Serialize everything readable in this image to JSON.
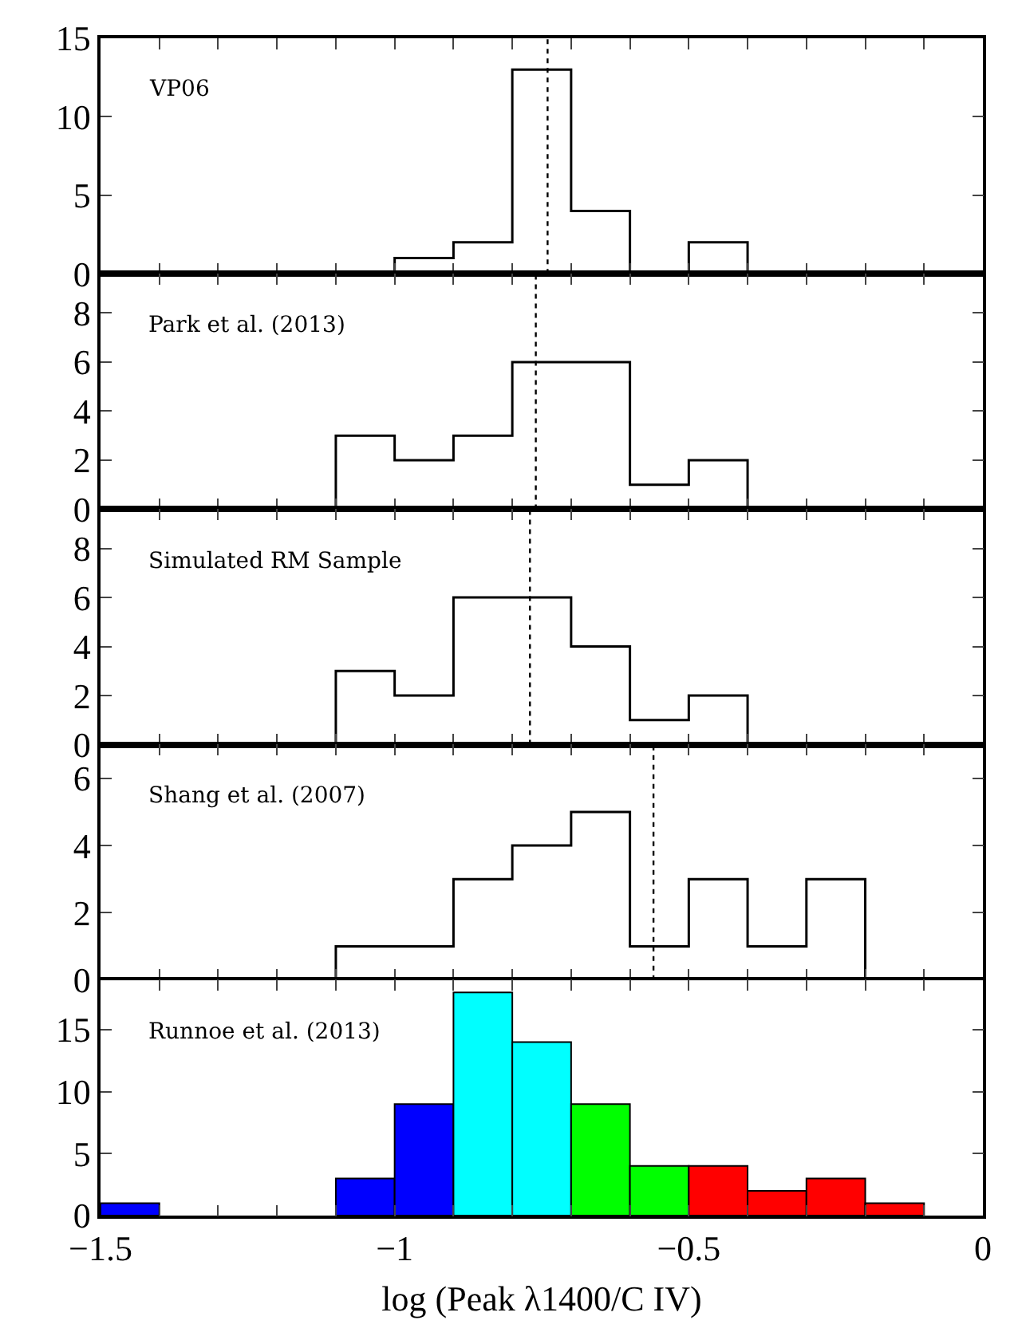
{
  "chart_data": [
    {
      "type": "histogram",
      "bins": [
        -1.0,
        -0.9,
        -0.8,
        -0.7,
        -0.6,
        -0.5,
        -0.4
      ],
      "values": [
        1,
        2,
        13,
        4,
        0,
        2
      ],
      "color": "#000000",
      "xlim": [
        -1.5,
        0
      ],
      "xticks": [
        {
          "value": -1.5,
          "label": null
        },
        {
          "value": -1.4,
          "label": null
        },
        {
          "value": -1.3,
          "label": null
        },
        {
          "value": -1.2,
          "label": null
        },
        {
          "value": -1.1,
          "label": null
        },
        {
          "value": -1.0,
          "label": null
        },
        {
          "value": -0.9,
          "label": null
        },
        {
          "value": -0.8,
          "label": null
        },
        {
          "value": -0.7,
          "label": null
        },
        {
          "value": -0.6,
          "label": null
        },
        {
          "value": -0.5,
          "label": null
        },
        {
          "value": -0.4,
          "label": null
        },
        {
          "value": -0.3,
          "label": null
        },
        {
          "value": -0.2,
          "label": null
        },
        {
          "value": -0.1,
          "label": null
        },
        {
          "value": 0,
          "label": null
        }
      ],
      "ylim": [
        0,
        15
      ],
      "yticks": [
        0,
        5,
        10,
        15
      ],
      "tick_labels": "y",
      "annotations": [
        "VP06"
      ],
      "ref_lines": [
        {
          "axis": "x",
          "value": -0.74,
          "color": "#000000",
          "line_style": "dotted"
        }
      ]
    },
    {
      "type": "histogram",
      "bins": [
        -1.1,
        -1.0,
        -0.9,
        -0.8,
        -0.7,
        -0.6,
        -0.5,
        -0.4
      ],
      "values": [
        3,
        2,
        3,
        6,
        6,
        1,
        2
      ],
      "color": "#000000",
      "xlim": [
        -1.5,
        0
      ],
      "xticks": [
        {
          "value": -1.5,
          "label": null
        },
        {
          "value": -1.4,
          "label": null
        },
        {
          "value": -1.3,
          "label": null
        },
        {
          "value": -1.2,
          "label": null
        },
        {
          "value": -1.1,
          "label": null
        },
        {
          "value": -1.0,
          "label": null
        },
        {
          "value": -0.9,
          "label": null
        },
        {
          "value": -0.8,
          "label": null
        },
        {
          "value": -0.7,
          "label": null
        },
        {
          "value": -0.6,
          "label": null
        },
        {
          "value": -0.5,
          "label": null
        },
        {
          "value": -0.4,
          "label": null
        },
        {
          "value": -0.3,
          "label": null
        },
        {
          "value": -0.2,
          "label": null
        },
        {
          "value": -0.1,
          "label": null
        },
        {
          "value": 0,
          "label": null
        }
      ],
      "ylim": [
        0,
        9.6
      ],
      "yticks": [
        0,
        2,
        4,
        6,
        8
      ],
      "tick_labels": "y",
      "annotations": [
        "Park et al. (2013)"
      ],
      "ref_lines": [
        {
          "axis": "x",
          "value": -0.76,
          "color": "#000000",
          "line_style": "dotted"
        }
      ]
    },
    {
      "type": "histogram",
      "bins": [
        -1.1,
        -1.0,
        -0.9,
        -0.8,
        -0.7,
        -0.6,
        -0.5,
        -0.4
      ],
      "values": [
        3,
        2,
        6,
        6,
        4,
        1,
        2
      ],
      "color": "#000000",
      "xlim": [
        -1.5,
        0
      ],
      "xticks": [
        {
          "value": -1.5,
          "label": null
        },
        {
          "value": -1.4,
          "label": null
        },
        {
          "value": -1.3,
          "label": null
        },
        {
          "value": -1.2,
          "label": null
        },
        {
          "value": -1.1,
          "label": null
        },
        {
          "value": -1.0,
          "label": null
        },
        {
          "value": -0.9,
          "label": null
        },
        {
          "value": -0.8,
          "label": null
        },
        {
          "value": -0.7,
          "label": null
        },
        {
          "value": -0.6,
          "label": null
        },
        {
          "value": -0.5,
          "label": null
        },
        {
          "value": -0.4,
          "label": null
        },
        {
          "value": -0.3,
          "label": null
        },
        {
          "value": -0.2,
          "label": null
        },
        {
          "value": -0.1,
          "label": null
        },
        {
          "value": 0,
          "label": null
        }
      ],
      "ylim": [
        0,
        9.6
      ],
      "yticks": [
        0,
        2,
        4,
        6,
        8
      ],
      "tick_labels": "y",
      "annotations": [
        "Simulated RM Sample"
      ],
      "ref_lines": [
        {
          "axis": "x",
          "value": -0.77,
          "color": "#000000",
          "line_style": "dotted"
        }
      ]
    },
    {
      "type": "histogram",
      "bins": [
        -1.1,
        -1.0,
        -0.9,
        -0.8,
        -0.7,
        -0.6,
        -0.5,
        -0.4,
        -0.3,
        -0.2
      ],
      "values": [
        1,
        1,
        3,
        4,
        5,
        1,
        3,
        1,
        3
      ],
      "color": "#000000",
      "xlim": [
        -1.5,
        0
      ],
      "xticks": [
        {
          "value": -1.5,
          "label": null
        },
        {
          "value": -1.4,
          "label": null
        },
        {
          "value": -1.3,
          "label": null
        },
        {
          "value": -1.2,
          "label": null
        },
        {
          "value": -1.1,
          "label": null
        },
        {
          "value": -1.0,
          "label": null
        },
        {
          "value": -0.9,
          "label": null
        },
        {
          "value": -0.8,
          "label": null
        },
        {
          "value": -0.7,
          "label": null
        },
        {
          "value": -0.6,
          "label": null
        },
        {
          "value": -0.5,
          "label": null
        },
        {
          "value": -0.4,
          "label": null
        },
        {
          "value": -0.3,
          "label": null
        },
        {
          "value": -0.2,
          "label": null
        },
        {
          "value": -0.1,
          "label": null
        },
        {
          "value": 0,
          "label": null
        }
      ],
      "ylim": [
        0,
        7
      ],
      "yticks": [
        0,
        2,
        4,
        6
      ],
      "tick_labels": "y",
      "annotations": [
        "Shang et al. (2007)"
      ],
      "ref_lines": [
        {
          "axis": "x",
          "value": -0.56,
          "color": "#000000",
          "line_style": "dotted"
        }
      ]
    },
    {
      "type": "histogram",
      "bins": [
        -1.5,
        -1.4,
        -1.3,
        -1.2,
        -1.1,
        -1.0,
        -0.9,
        -0.8,
        -0.7,
        -0.6,
        -0.5,
        -0.4,
        -0.3,
        -0.2,
        -0.1
      ],
      "values": [
        1,
        0,
        0,
        0,
        3,
        9,
        18,
        14,
        9,
        4,
        4,
        2,
        3,
        1
      ],
      "colors": [
        "#0000ff",
        null,
        null,
        null,
        "#0000ff",
        "#0000ff",
        "#00ffff",
        "#00ffff",
        "#00ff00",
        "#00ff00",
        "#ff0000",
        "#ff0000",
        "#ff0000",
        "#ff0000"
      ],
      "xlim": [
        -1.5,
        0
      ],
      "xticks": [
        {
          "value": -1.5,
          "label": "−1.5"
        },
        {
          "value": -1.4,
          "label": null
        },
        {
          "value": -1.3,
          "label": null
        },
        {
          "value": -1.2,
          "label": null
        },
        {
          "value": -1.1,
          "label": null
        },
        {
          "value": -1.0,
          "label": "−1"
        },
        {
          "value": -0.9,
          "label": null
        },
        {
          "value": -0.8,
          "label": null
        },
        {
          "value": -0.7,
          "label": null
        },
        {
          "value": -0.6,
          "label": null
        },
        {
          "value": -0.5,
          "label": "−0.5"
        },
        {
          "value": -0.4,
          "label": null
        },
        {
          "value": -0.3,
          "label": null
        },
        {
          "value": -0.2,
          "label": null
        },
        {
          "value": -0.1,
          "label": null
        },
        {
          "value": 0,
          "label": "0"
        }
      ],
      "ylim": [
        0,
        19
      ],
      "yticks": [
        0,
        5,
        10,
        15
      ],
      "xlabel": "log (Peak λ1400/C IV)",
      "annotations": [
        "Runnoe et al. (2013)"
      ]
    }
  ]
}
